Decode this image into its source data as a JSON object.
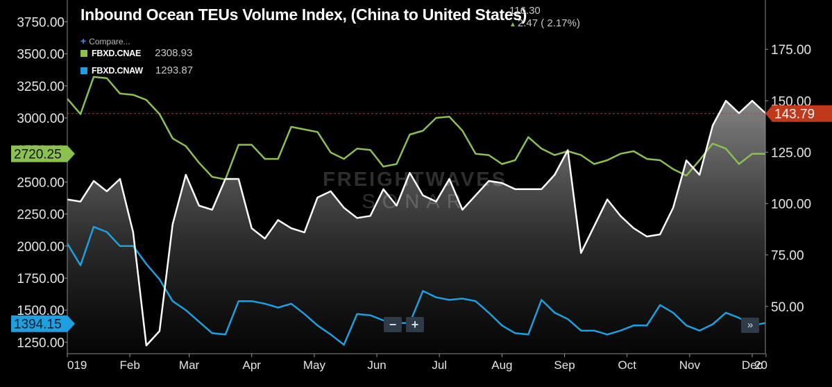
{
  "header": {
    "title": "Inbound Ocean TEUs Volume Index, (China to United States)",
    "last_value": "116.30",
    "change": "2.47 ( 2.17%)",
    "compare_label": "Compare..."
  },
  "legend": [
    {
      "name": "FBXD.CNAE",
      "value": "2308.93",
      "color": "#8cc152"
    },
    {
      "name": "FBXD.CNAW",
      "value": "1293.87",
      "color": "#1ea0e0"
    }
  ],
  "watermark": {
    "line1": "FREIGHTWAVES",
    "line2": "SONAR"
  },
  "controls": {
    "zoom_out": "−",
    "zoom_in": "+",
    "expand": "»"
  },
  "colors": {
    "background": "#000000",
    "index_line": "#ffffff",
    "cnae": "#8cc152",
    "cnaw": "#1ea0e0",
    "marker_right": "#c0391b",
    "marker_left_green": "#8cc152",
    "marker_left_blue": "#1ea0e0"
  },
  "chart_data": {
    "type": "line",
    "x_ticks": [
      "019",
      "Feb",
      "Mar",
      "Apr",
      "May",
      "Jun",
      "Jul",
      "Aug",
      "Sep",
      "Oct",
      "Nov",
      "Dec",
      "20"
    ],
    "left_axis": {
      "ylim": [
        1160,
        3920
      ],
      "ticks": [
        "3750.00",
        "3500.00",
        "3250.00",
        "3000.00",
        "2750.00",
        "2500.00",
        "2250.00",
        "2000.00",
        "1750.00",
        "1500.00",
        "1250.00"
      ],
      "tick_values": [
        3750,
        3500,
        3250,
        3000,
        2750,
        2500,
        2250,
        2000,
        1750,
        1500,
        1250
      ]
    },
    "right_axis": {
      "ylim": [
        27,
        199
      ],
      "ticks": [
        "175.00",
        "150.00",
        "125.00",
        "100.00",
        "75.00",
        "50.00"
      ],
      "tick_values": [
        175,
        150,
        125,
        100,
        75,
        50
      ]
    },
    "series": [
      {
        "name": "FBXD.CNAE",
        "axis": "left",
        "color": "#8cc152",
        "x": [
          0,
          2,
          4,
          6,
          8,
          10,
          12,
          14,
          16,
          18,
          20,
          22,
          24,
          26,
          28,
          30,
          32,
          34,
          36,
          38,
          40,
          42,
          44,
          46,
          48,
          50,
          52,
          54,
          56,
          58,
          60,
          62,
          64,
          66,
          68,
          70,
          72,
          74,
          76,
          78,
          80,
          82,
          84,
          86,
          88,
          90,
          92,
          94,
          96,
          98,
          100,
          102,
          104,
          106
        ],
        "values": [
          3150,
          3030,
          3320,
          3310,
          3190,
          3180,
          3140,
          3030,
          2840,
          2780,
          2650,
          2540,
          2520,
          2790,
          2790,
          2680,
          2680,
          2930,
          2910,
          2890,
          2730,
          2680,
          2760,
          2750,
          2620,
          2640,
          2870,
          2900,
          3000,
          3010,
          2900,
          2720,
          2710,
          2640,
          2670,
          2850,
          2760,
          2710,
          2740,
          2710,
          2640,
          2670,
          2720,
          2740,
          2680,
          2670,
          2600,
          2550,
          2670,
          2800,
          2760,
          2640,
          2720,
          2720
        ]
      },
      {
        "name": "FBXD.CNAW",
        "axis": "left",
        "color": "#1ea0e0",
        "x": [
          0,
          2,
          4,
          6,
          8,
          10,
          12,
          14,
          16,
          18,
          20,
          22,
          24,
          26,
          28,
          30,
          32,
          34,
          36,
          38,
          40,
          42,
          44,
          46,
          48,
          50,
          52,
          54,
          56,
          58,
          60,
          62,
          64,
          66,
          68,
          70,
          72,
          74,
          76,
          78,
          80,
          82,
          84,
          86,
          88,
          90,
          92,
          94,
          96,
          98,
          100,
          102,
          104,
          106
        ],
        "values": [
          2020,
          1850,
          2150,
          2110,
          2000,
          2000,
          1860,
          1740,
          1570,
          1500,
          1410,
          1320,
          1310,
          1570,
          1570,
          1550,
          1520,
          1550,
          1470,
          1380,
          1310,
          1230,
          1470,
          1460,
          1420,
          1400,
          1400,
          1650,
          1600,
          1580,
          1590,
          1570,
          1480,
          1380,
          1320,
          1310,
          1580,
          1480,
          1430,
          1340,
          1340,
          1310,
          1340,
          1380,
          1380,
          1540,
          1480,
          1380,
          1340,
          1390,
          1480,
          1440,
          1380,
          1400
        ]
      },
      {
        "name": "Inbound Ocean TEUs Volume Index",
        "axis": "right",
        "color": "#ffffff",
        "x": [
          0,
          2,
          4,
          6,
          8,
          10,
          12,
          14,
          16,
          18,
          20,
          22,
          24,
          26,
          28,
          30,
          32,
          34,
          36,
          38,
          40,
          42,
          44,
          46,
          48,
          50,
          52,
          54,
          56,
          58,
          60,
          62,
          64,
          66,
          68,
          70,
          72,
          74,
          76,
          78,
          80,
          82,
          84,
          86,
          88,
          90,
          92,
          94,
          96,
          98,
          100,
          102,
          104,
          106
        ],
        "values": [
          102,
          101,
          111,
          106,
          112,
          86,
          31,
          38,
          90,
          114,
          99,
          97,
          112,
          112,
          88,
          83,
          92,
          88,
          86,
          103,
          106,
          98,
          93,
          94,
          107,
          99,
          115,
          104,
          101,
          112,
          97,
          104,
          111,
          110,
          107,
          107,
          107,
          114,
          126,
          76,
          89,
          102,
          94,
          88,
          84,
          85,
          98,
          121,
          114,
          138,
          150,
          144,
          150,
          144
        ]
      }
    ],
    "markers": [
      {
        "label": "2720.25",
        "axis": "left",
        "value": 2720.25,
        "side": "left",
        "color": "#8cc152"
      },
      {
        "label": "1394.15",
        "axis": "left",
        "value": 1394.15,
        "side": "left",
        "color": "#1ea0e0"
      },
      {
        "label": "143.79",
        "axis": "right",
        "value": 143.79,
        "side": "right",
        "color": "#c0391b"
      }
    ]
  }
}
